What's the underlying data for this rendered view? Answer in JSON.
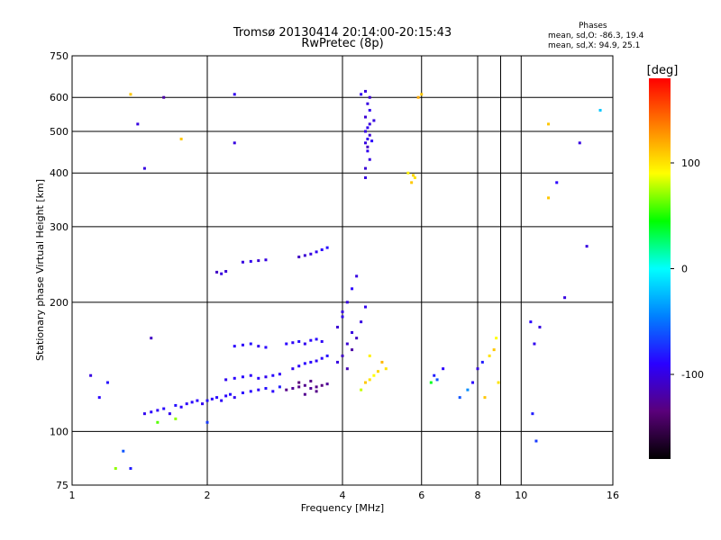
{
  "chart_data": {
    "type": "scatter",
    "title": "Tromsø 20130414 20:14:00-20:15:43",
    "subtitle": "RwPretec (8p)",
    "xlabel": "Frequency [MHz]",
    "ylabel": "Stationary phase Virtual Height [km]",
    "x_scale": "log",
    "y_scale": "log",
    "xlim": [
      1,
      16
    ],
    "ylim": [
      75,
      750
    ],
    "x_ticks": [
      1,
      2,
      4,
      6,
      8,
      9,
      10,
      16
    ],
    "x_tick_labels": [
      "1",
      "2",
      "4",
      "6",
      "8",
      "",
      "10",
      "16"
    ],
    "y_ticks": [
      75,
      100,
      200,
      300,
      400,
      500,
      600,
      750
    ],
    "grid": true,
    "info_lines": [
      "Phases",
      "mean, sd,O: -86.3, 19.4",
      "mean, sd,X: 94.9, 25.1"
    ],
    "colorbar": {
      "label": "[deg]",
      "range": [
        -180,
        180
      ],
      "ticks": [
        100,
        0,
        -100
      ],
      "colors": [
        "#000000",
        "#5a007a",
        "#2a00ff",
        "#0080ff",
        "#00ffff",
        "#00ff00",
        "#ffff00",
        "#ff8000",
        "#ff0000"
      ]
    },
    "series": [
      {
        "values": [
          [
            1.45,
            110,
            -95
          ],
          [
            1.5,
            111,
            -90
          ],
          [
            1.55,
            112,
            -92
          ],
          [
            1.6,
            113,
            -88
          ],
          [
            1.65,
            110,
            -95
          ],
          [
            1.7,
            115,
            -85
          ],
          [
            1.75,
            114,
            -90
          ],
          [
            1.8,
            116,
            -92
          ],
          [
            1.85,
            117,
            -88
          ],
          [
            1.9,
            118,
            -90
          ],
          [
            1.95,
            116,
            -95
          ],
          [
            2.0,
            118,
            -85
          ],
          [
            2.05,
            119,
            -90
          ],
          [
            2.1,
            120,
            -88
          ],
          [
            2.15,
            118,
            -92
          ],
          [
            2.2,
            121,
            -90
          ],
          [
            2.25,
            122,
            -85
          ],
          [
            2.3,
            120,
            -95
          ],
          [
            2.4,
            123,
            -90
          ],
          [
            2.5,
            124,
            -88
          ],
          [
            2.6,
            125,
            -92
          ],
          [
            2.7,
            126,
            -85
          ],
          [
            2.8,
            124,
            -90
          ],
          [
            2.9,
            127,
            -80
          ],
          [
            1.55,
            105,
            60
          ],
          [
            1.7,
            107,
            70
          ],
          [
            2.0,
            105,
            -70
          ],
          [
            2.2,
            132,
            -95
          ],
          [
            2.3,
            133,
            -90
          ],
          [
            2.4,
            134,
            -88
          ],
          [
            2.5,
            135,
            -92
          ],
          [
            2.6,
            133,
            -90
          ],
          [
            2.7,
            134,
            -95
          ],
          [
            2.8,
            135,
            -88
          ],
          [
            2.9,
            136,
            -92
          ],
          [
            2.3,
            158,
            -90
          ],
          [
            2.4,
            159,
            -92
          ],
          [
            2.5,
            160,
            -85
          ],
          [
            2.6,
            158,
            -95
          ],
          [
            2.7,
            157,
            -90
          ],
          [
            3.0,
            160,
            -90
          ],
          [
            3.1,
            161,
            -92
          ],
          [
            3.2,
            162,
            -85
          ],
          [
            3.3,
            160,
            -95
          ],
          [
            3.4,
            163,
            -90
          ],
          [
            3.5,
            164,
            -88
          ],
          [
            3.6,
            162,
            -92
          ],
          [
            3.1,
            140,
            -95
          ],
          [
            3.2,
            142,
            -92
          ],
          [
            3.3,
            144,
            -90
          ],
          [
            3.4,
            145,
            -88
          ],
          [
            3.5,
            146,
            -92
          ],
          [
            3.6,
            148,
            -90
          ],
          [
            3.7,
            150,
            -85
          ],
          [
            3.0,
            125,
            -130
          ],
          [
            3.1,
            126,
            -125
          ],
          [
            3.2,
            127,
            -130
          ],
          [
            3.3,
            128,
            -128
          ],
          [
            3.4,
            126,
            -125
          ],
          [
            3.5,
            127,
            -130
          ],
          [
            3.6,
            128,
            -132
          ],
          [
            3.7,
            129,
            -125
          ],
          [
            3.3,
            122,
            -128
          ],
          [
            3.5,
            124,
            -130
          ],
          [
            3.2,
            130,
            -135
          ],
          [
            3.4,
            131,
            -130
          ],
          [
            2.1,
            235,
            -110
          ],
          [
            2.15,
            233,
            -100
          ],
          [
            2.2,
            236,
            -105
          ],
          [
            2.4,
            248,
            -100
          ],
          [
            2.5,
            249,
            -95
          ],
          [
            2.6,
            250,
            -105
          ],
          [
            2.7,
            251,
            -100
          ],
          [
            3.2,
            255,
            -110
          ],
          [
            3.3,
            257,
            -105
          ],
          [
            3.4,
            259,
            -100
          ],
          [
            3.5,
            262,
            -95
          ],
          [
            3.6,
            265,
            -90
          ],
          [
            3.7,
            268,
            -85
          ],
          [
            3.9,
            145,
            -100
          ],
          [
            4.0,
            150,
            -110
          ],
          [
            4.1,
            160,
            -105
          ],
          [
            4.2,
            170,
            -100
          ],
          [
            4.0,
            185,
            -95
          ],
          [
            4.1,
            200,
            -100
          ],
          [
            4.2,
            215,
            -90
          ],
          [
            4.3,
            230,
            -100
          ],
          [
            3.9,
            175,
            -105
          ],
          [
            4.0,
            190,
            -100
          ],
          [
            4.3,
            165,
            -110
          ],
          [
            4.4,
            180,
            -100
          ],
          [
            4.5,
            195,
            -95
          ],
          [
            4.2,
            155,
            -120
          ],
          [
            4.1,
            140,
            -115
          ],
          [
            4.5,
            470,
            -100
          ],
          [
            4.55,
            480,
            -95
          ],
          [
            4.6,
            490,
            -105
          ],
          [
            4.5,
            500,
            -100
          ],
          [
            4.55,
            510,
            -95
          ],
          [
            4.6,
            520,
            -100
          ],
          [
            4.5,
            540,
            -105
          ],
          [
            4.6,
            560,
            -95
          ],
          [
            4.55,
            580,
            -100
          ],
          [
            4.6,
            600,
            -105
          ],
          [
            4.5,
            620,
            -100
          ],
          [
            4.55,
            450,
            -95
          ],
          [
            4.6,
            430,
            -100
          ],
          [
            4.5,
            410,
            -105
          ],
          [
            4.55,
            460,
            -110
          ],
          [
            4.65,
            475,
            -90
          ],
          [
            4.7,
            530,
            -100
          ],
          [
            4.4,
            610,
            -95
          ],
          [
            4.5,
            390,
            -100
          ],
          [
            4.5,
            130,
            110
          ],
          [
            4.6,
            132,
            100
          ],
          [
            4.7,
            135,
            90
          ],
          [
            4.8,
            138,
            105
          ],
          [
            5.0,
            140,
            100
          ],
          [
            4.9,
            145,
            115
          ],
          [
            4.4,
            125,
            80
          ],
          [
            4.6,
            150,
            95
          ],
          [
            5.7,
            380,
            110
          ],
          [
            5.8,
            390,
            100
          ],
          [
            5.6,
            400,
            95
          ],
          [
            5.75,
            395,
            105
          ],
          [
            5.9,
            600,
            120
          ],
          [
            6.0,
            610,
            110
          ],
          [
            6.3,
            130,
            40
          ],
          [
            6.5,
            132,
            -60
          ],
          [
            6.4,
            135,
            -80
          ],
          [
            6.7,
            140,
            -90
          ],
          [
            7.3,
            120,
            -60
          ],
          [
            7.6,
            125,
            -40
          ],
          [
            7.8,
            130,
            -90
          ],
          [
            8.0,
            140,
            -100
          ],
          [
            8.2,
            145,
            -80
          ],
          [
            8.5,
            150,
            100
          ],
          [
            8.7,
            155,
            110
          ],
          [
            8.8,
            165,
            90
          ],
          [
            8.9,
            130,
            100
          ],
          [
            8.3,
            120,
            110
          ],
          [
            10.5,
            180,
            -90
          ],
          [
            10.7,
            160,
            -95
          ],
          [
            11.0,
            175,
            -100
          ],
          [
            10.6,
            110,
            -80
          ],
          [
            10.8,
            95,
            -70
          ],
          [
            1.1,
            135,
            -100
          ],
          [
            1.15,
            120,
            -90
          ],
          [
            1.2,
            130,
            -85
          ],
          [
            1.3,
            90,
            -60
          ],
          [
            1.35,
            82,
            -80
          ],
          [
            1.25,
            82,
            70
          ],
          [
            1.5,
            165,
            -110
          ],
          [
            1.45,
            410,
            -100
          ],
          [
            1.6,
            600,
            -120
          ],
          [
            1.35,
            610,
            110
          ],
          [
            1.4,
            520,
            -100
          ],
          [
            1.75,
            480,
            110
          ],
          [
            2.3,
            610,
            -95
          ],
          [
            2.3,
            470,
            -100
          ],
          [
            13.5,
            470,
            -100
          ],
          [
            15.0,
            560,
            -20
          ],
          [
            12.0,
            380,
            -90
          ],
          [
            11.5,
            350,
            110
          ],
          [
            11.5,
            520,
            110
          ],
          [
            12.5,
            205,
            -100
          ],
          [
            14.0,
            270,
            -100
          ]
        ]
      }
    ]
  }
}
